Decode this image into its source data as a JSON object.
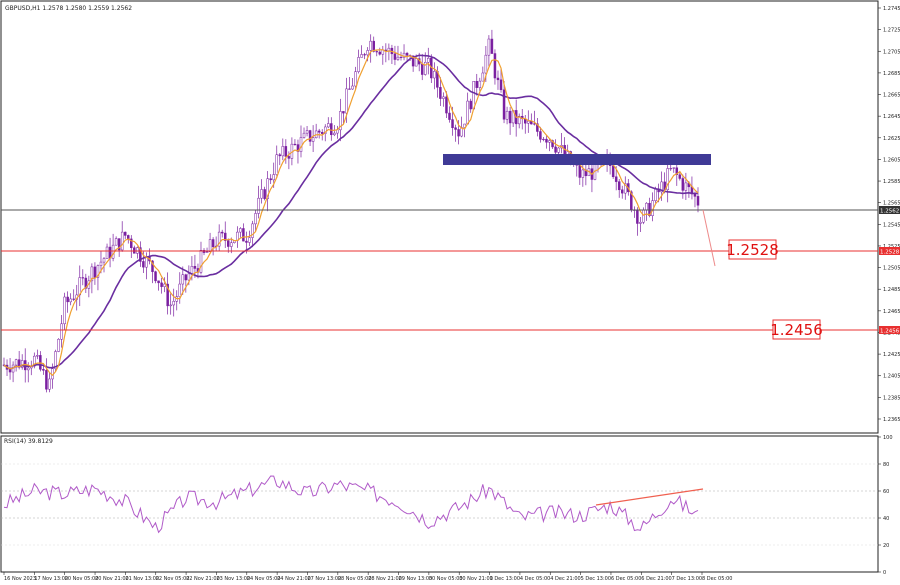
{
  "header": {
    "symbol_info": "GBPUSD,H1  1.2578 1.2580 1.2559 1.2562"
  },
  "rsi": {
    "label": "RSI(14) 39.8129",
    "ticks": [
      100,
      80,
      60,
      40,
      20,
      0
    ]
  },
  "annotations": {
    "level1_label": "1.2528",
    "level2_label": "1.2456"
  },
  "price_axis": {
    "ticks": [
      "1.2745",
      "1.2725",
      "1.2705",
      "1.2685",
      "1.2665",
      "1.2645",
      "1.2625",
      "1.2605",
      "1.2585",
      "1.2565",
      "1.2545",
      "1.2525",
      "1.2505",
      "1.2485",
      "1.2465",
      "1.2445",
      "1.2425",
      "1.2405",
      "1.2385",
      "1.2365"
    ],
    "current_price_tag": "1.2562",
    "level1_tag": "1.2528",
    "level2_tag": "1.2456"
  },
  "time_axis": {
    "labels": [
      "16 Nov 2023",
      "17 Nov 13:00",
      "20 Nov 05:00",
      "20 Nov 21:00",
      "21 Nov 13:00",
      "22 Nov 05:00",
      "22 Nov 21:00",
      "23 Nov 13:00",
      "24 Nov 05:00",
      "24 Nov 21:00",
      "27 Nov 13:00",
      "28 Nov 05:00",
      "28 Nov 21:00",
      "29 Nov 13:00",
      "30 Nov 05:00",
      "30 Nov 21:00",
      "1 Dec 13:00",
      "4 Dec 05:00",
      "4 Dec 21:00",
      "5 Dec 13:00",
      "6 Dec 05:00",
      "6 Dec 21:00",
      "7 Dec 13:00",
      "8 Dec 05:00"
    ]
  },
  "colors": {
    "background": "#ffffff",
    "candle": "#7a1fa0",
    "fast_ma": "#f0a030",
    "slow_ma": "#6a2ea0",
    "zone": "#3f3a96",
    "level_line": "#e83030",
    "current_line": "#555555",
    "rsi_line": "#b05ac8",
    "trendline": "#f06050"
  },
  "chart_data": {
    "type": "candlestick",
    "symbol": "GBPUSD",
    "timeframe": "H1",
    "price_range": [
      1.2355,
      1.2755
    ],
    "current_price": 1.2562,
    "levels": [
      1.2528,
      1.2456
    ],
    "resistance_zone": [
      1.2604,
      1.2614
    ],
    "price_path": [
      [
        "16 Nov 2023",
        1.2415
      ],
      [
        "17 Nov 05:00",
        1.2395
      ],
      [
        "17 Nov 13:00",
        1.242
      ],
      [
        "20 Nov 05:00",
        1.247
      ],
      [
        "20 Nov 21:00",
        1.2505
      ],
      [
        "21 Nov 13:00",
        1.2535
      ],
      [
        "22 Nov 05:00",
        1.25
      ],
      [
        "22 Nov 13:00",
        1.247
      ],
      [
        "22 Nov 21:00",
        1.2495
      ],
      [
        "23 Nov 13:00",
        1.253
      ],
      [
        "24 Nov 05:00",
        1.2535
      ],
      [
        "24 Nov 21:00",
        1.2605
      ],
      [
        "27 Nov 13:00",
        1.2625
      ],
      [
        "28 Nov 05:00",
        1.264
      ],
      [
        "28 Nov 21:00",
        1.2715
      ],
      [
        "29 Nov 13:00",
        1.27
      ],
      [
        "30 Nov 05:00",
        1.269
      ],
      [
        "30 Nov 21:00",
        1.263
      ],
      [
        "1 Dec 05:00",
        1.2645
      ],
      [
        "1 Dec 13:00",
        1.271
      ],
      [
        "4 Dec 05:00",
        1.264
      ],
      [
        "4 Dec 21:00",
        1.2625
      ],
      [
        "5 Dec 13:00",
        1.259
      ],
      [
        "6 Dec 05:00",
        1.26
      ],
      [
        "6 Dec 21:00",
        1.2548
      ],
      [
        "7 Dec 13:00",
        1.2595
      ],
      [
        "8 Dec 05:00",
        1.2562
      ]
    ],
    "rsi_range": [
      0,
      100
    ],
    "rsi_last": 39.8129,
    "rsi_path": [
      [
        "16 Nov 2023",
        50
      ],
      [
        "17 Nov 13:00",
        60
      ],
      [
        "20 Nov 05:00",
        58
      ],
      [
        "20 Nov 21:00",
        62
      ],
      [
        "21 Nov 13:00",
        52
      ],
      [
        "22 Nov 05:00",
        33
      ],
      [
        "22 Nov 21:00",
        55
      ],
      [
        "23 Nov 13:00",
        52
      ],
      [
        "24 Nov 05:00",
        60
      ],
      [
        "24 Nov 21:00",
        68
      ],
      [
        "27 Nov 13:00",
        58
      ],
      [
        "28 Nov 05:00",
        65
      ],
      [
        "28 Nov 21:00",
        60
      ],
      [
        "29 Nov 13:00",
        52
      ],
      [
        "30 Nov 05:00",
        38
      ],
      [
        "30 Nov 21:00",
        48
      ],
      [
        "1 Dec 13:00",
        62
      ],
      [
        "4 Dec 05:00",
        40
      ],
      [
        "4 Dec 21:00",
        44
      ],
      [
        "5 Dec 13:00",
        42
      ],
      [
        "6 Dec 05:00",
        50
      ],
      [
        "6 Dec 21:00",
        32
      ],
      [
        "7 Dec 13:00",
        55
      ],
      [
        "8 Dec 05:00",
        40
      ]
    ]
  }
}
